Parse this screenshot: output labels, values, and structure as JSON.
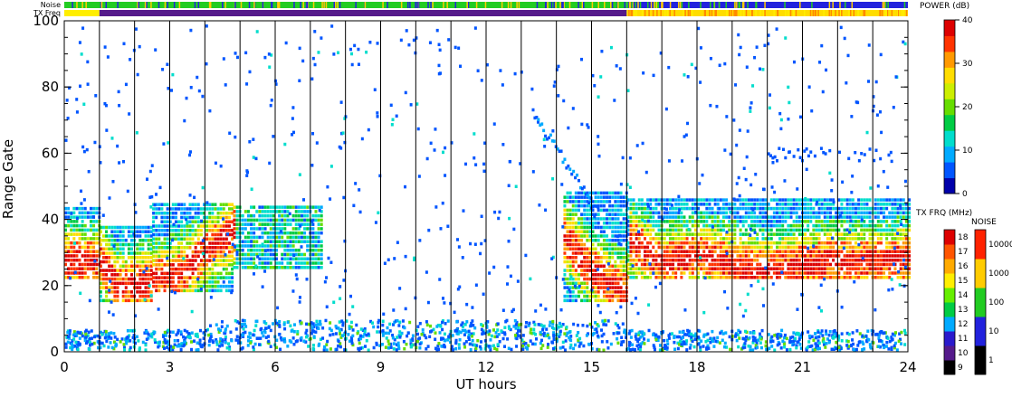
{
  "chart_data": {
    "type": "heatmap",
    "xlabel": "UT hours",
    "ylabel": "Range Gate",
    "xlim": [
      0,
      24
    ],
    "ylim": [
      0,
      100
    ],
    "x_ticks": [
      "0",
      "3",
      "6",
      "9",
      "12",
      "15",
      "18",
      "21",
      "24"
    ],
    "x_tick_values": [
      0,
      3,
      6,
      9,
      12,
      15,
      18,
      21,
      24
    ],
    "y_ticks": [
      "0",
      "20",
      "40",
      "60",
      "80",
      "100"
    ],
    "y_tick_values": [
      0,
      20,
      40,
      60,
      80,
      100
    ],
    "grid": "vertical lines at each UT hour",
    "vertical_lines_ut": [
      1,
      2,
      3,
      4,
      5,
      6,
      7,
      8,
      9,
      10,
      11,
      12,
      13,
      14,
      15,
      16,
      17,
      18,
      19,
      20,
      21,
      22,
      23
    ],
    "top_strips": {
      "noise_label": "Noise",
      "txfreq_label": "TX Freq",
      "noise_segments": [
        {
          "from": 0,
          "to": 16,
          "color": "#22cc22"
        },
        {
          "from": 16,
          "to": 24,
          "color": "#2222dd"
        }
      ],
      "txfreq_segments": [
        {
          "from": 0,
          "to": 1,
          "color": "#ffee00"
        },
        {
          "from": 1,
          "to": 16,
          "color": "#551a8b"
        },
        {
          "from": 16,
          "to": 24,
          "color": "#ffdd00"
        }
      ]
    },
    "series": [
      {
        "role": "power_core_band",
        "ut": [
          0,
          1,
          1.5,
          2,
          3,
          3.5,
          4,
          4.5,
          4.8
        ],
        "gate": [
          27,
          27,
          19,
          20,
          22,
          25,
          30,
          34,
          36
        ]
      },
      {
        "role": "power_core_band",
        "ut": [
          14.2,
          14.5,
          15,
          15.5,
          16,
          16.05,
          17,
          18,
          19,
          20,
          21,
          22,
          23,
          23.5,
          24
        ],
        "gate": [
          34,
          30,
          24,
          20,
          17,
          33,
          26,
          29,
          26,
          24,
          26,
          27,
          27,
          27,
          28
        ]
      }
    ],
    "band_segments": [
      {
        "from": 0,
        "to": 1,
        "lo": 22,
        "hi": 43
      },
      {
        "from": 1,
        "to": 2.5,
        "lo": 15,
        "hi": 38
      },
      {
        "from": 2.5,
        "to": 4.8,
        "lo": 18,
        "hi": 44
      },
      {
        "from": 4.8,
        "to": 7.3,
        "lo": 25,
        "hi": 44
      },
      {
        "from": 14.2,
        "to": 16,
        "lo": 15,
        "hi": 48
      },
      {
        "from": 16,
        "to": 24,
        "lo": 22,
        "hi": 46
      }
    ],
    "colorbars": [
      {
        "title": "POWER (dB)",
        "ticks": [
          "0",
          "10",
          "20",
          "30",
          "40"
        ],
        "tick_values": [
          0,
          10,
          20,
          30,
          40
        ]
      },
      {
        "title": "TX FRQ (MHz)",
        "ticks": [
          "9",
          "10",
          "11",
          "12",
          "13",
          "14",
          "15",
          "16",
          "17",
          "18"
        ]
      },
      {
        "title": "NOISE",
        "ticks": [
          "1",
          "10",
          "100",
          "1000",
          "10000"
        ]
      }
    ],
    "colors": {
      "power_scale": [
        "#0000aa",
        "#0055ff",
        "#00aaff",
        "#00ddcc",
        "#00cc44",
        "#66dd00",
        "#ccee00",
        "#ffdd00",
        "#ff9900",
        "#ff3300",
        "#dd0000"
      ],
      "txfrq_scale": [
        "#000000",
        "#551a8b",
        "#2a1acc",
        "#00aaff",
        "#00cc44",
        "#66ee00",
        "#ffee00",
        "#ffaa00",
        "#ff5500",
        "#dd0000"
      ],
      "noise_scale": [
        "#000000",
        "#2222dd",
        "#22cc22",
        "#ffcc00",
        "#ff2200"
      ]
    }
  }
}
